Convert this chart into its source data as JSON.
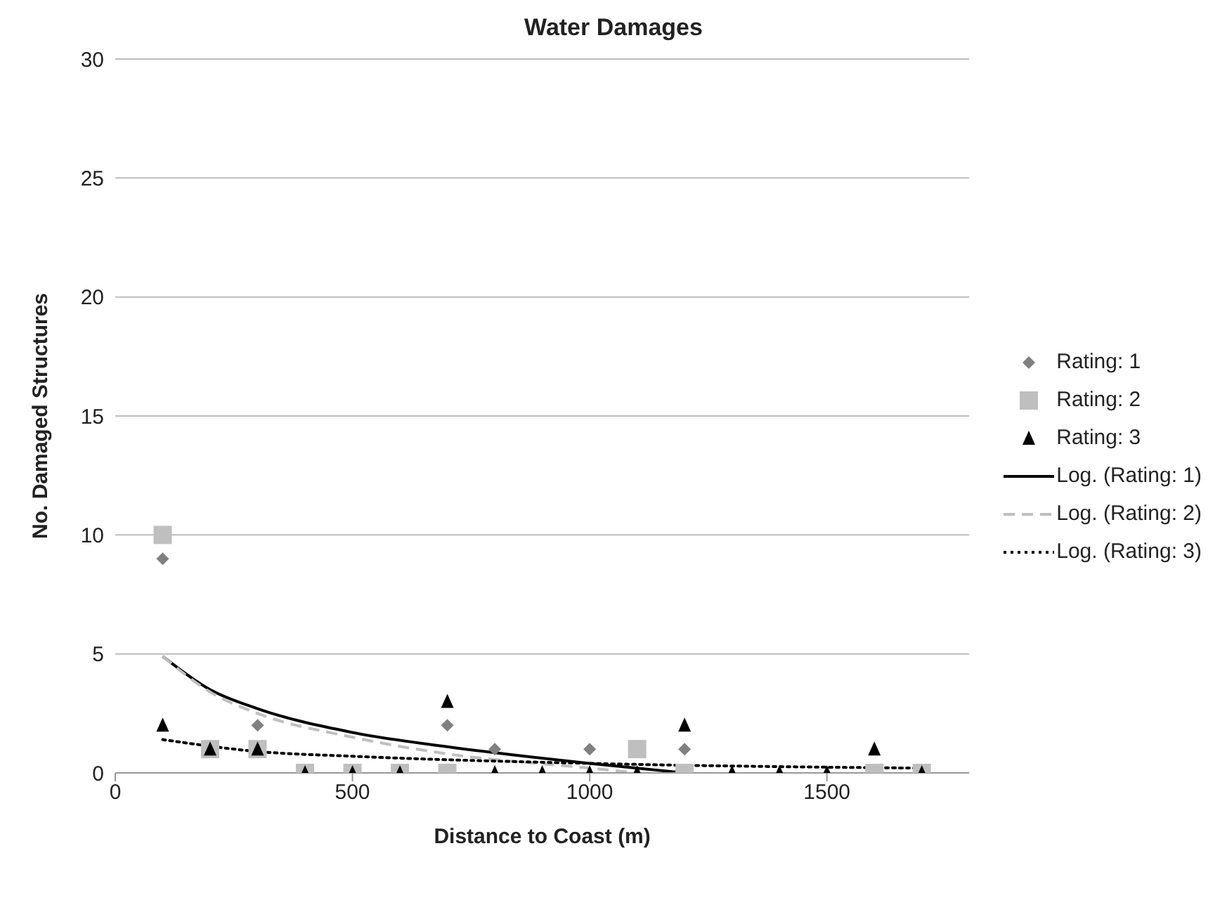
{
  "chart_data": {
    "type": "scatter",
    "title": "Water Damages",
    "xlabel": "Distance to Coast (m)",
    "ylabel": "No. Damaged Structures",
    "xlim": [
      0,
      1800
    ],
    "xticks": [
      0,
      500,
      1000,
      1500
    ],
    "ylim": [
      0,
      30
    ],
    "yticks": [
      0,
      5,
      10,
      15,
      20,
      25,
      30
    ],
    "grid": "y",
    "legend": "right",
    "series": [
      {
        "name": "Rating: 1",
        "marker": "diamond",
        "color": "#808080",
        "x": [
          100,
          300,
          700,
          800,
          1000,
          1200
        ],
        "values": [
          9,
          2,
          2,
          1,
          1,
          1
        ]
      },
      {
        "name": "Rating: 2",
        "marker": "square",
        "color": "#bfbfbf",
        "x": [
          100,
          200,
          300,
          400,
          500,
          600,
          700,
          1100,
          1200,
          1600,
          1700
        ],
        "values": [
          10,
          1,
          1,
          0,
          0,
          0,
          0,
          1,
          0,
          0,
          0
        ]
      },
      {
        "name": "Rating: 3",
        "marker": "triangle",
        "color": "#000000",
        "x": [
          100,
          200,
          300,
          400,
          500,
          600,
          700,
          800,
          900,
          1000,
          1100,
          1200,
          1300,
          1400,
          1500,
          1600,
          1700
        ],
        "values": [
          2,
          1,
          1,
          0,
          0,
          0,
          3,
          0,
          0,
          0,
          0,
          2,
          0,
          0,
          0,
          1,
          0
        ]
      },
      {
        "name": "Log. (Rating: 1)",
        "type": "line",
        "marker": "none",
        "line_style": "solid",
        "color": "#000000",
        "x": [
          100,
          200,
          300,
          500,
          700,
          1000,
          1200
        ],
        "values": [
          4.9,
          3.5,
          2.7,
          1.7,
          1.1,
          0.4,
          0
        ]
      },
      {
        "name": "Log. (Rating: 2)",
        "type": "line",
        "marker": "none",
        "line_style": "dashed",
        "color": "#bfbfbf",
        "x": [
          100,
          200,
          300,
          500,
          700,
          1000,
          1100
        ],
        "values": [
          4.9,
          3.4,
          2.5,
          1.5,
          0.8,
          0.2,
          0
        ]
      },
      {
        "name": "Log. (Rating: 3)",
        "type": "line",
        "marker": "none",
        "line_style": "dotted",
        "color": "#000000",
        "x": [
          100,
          300,
          500,
          1000,
          1700
        ],
        "values": [
          1.4,
          0.9,
          0.7,
          0.4,
          0.2
        ]
      }
    ]
  }
}
